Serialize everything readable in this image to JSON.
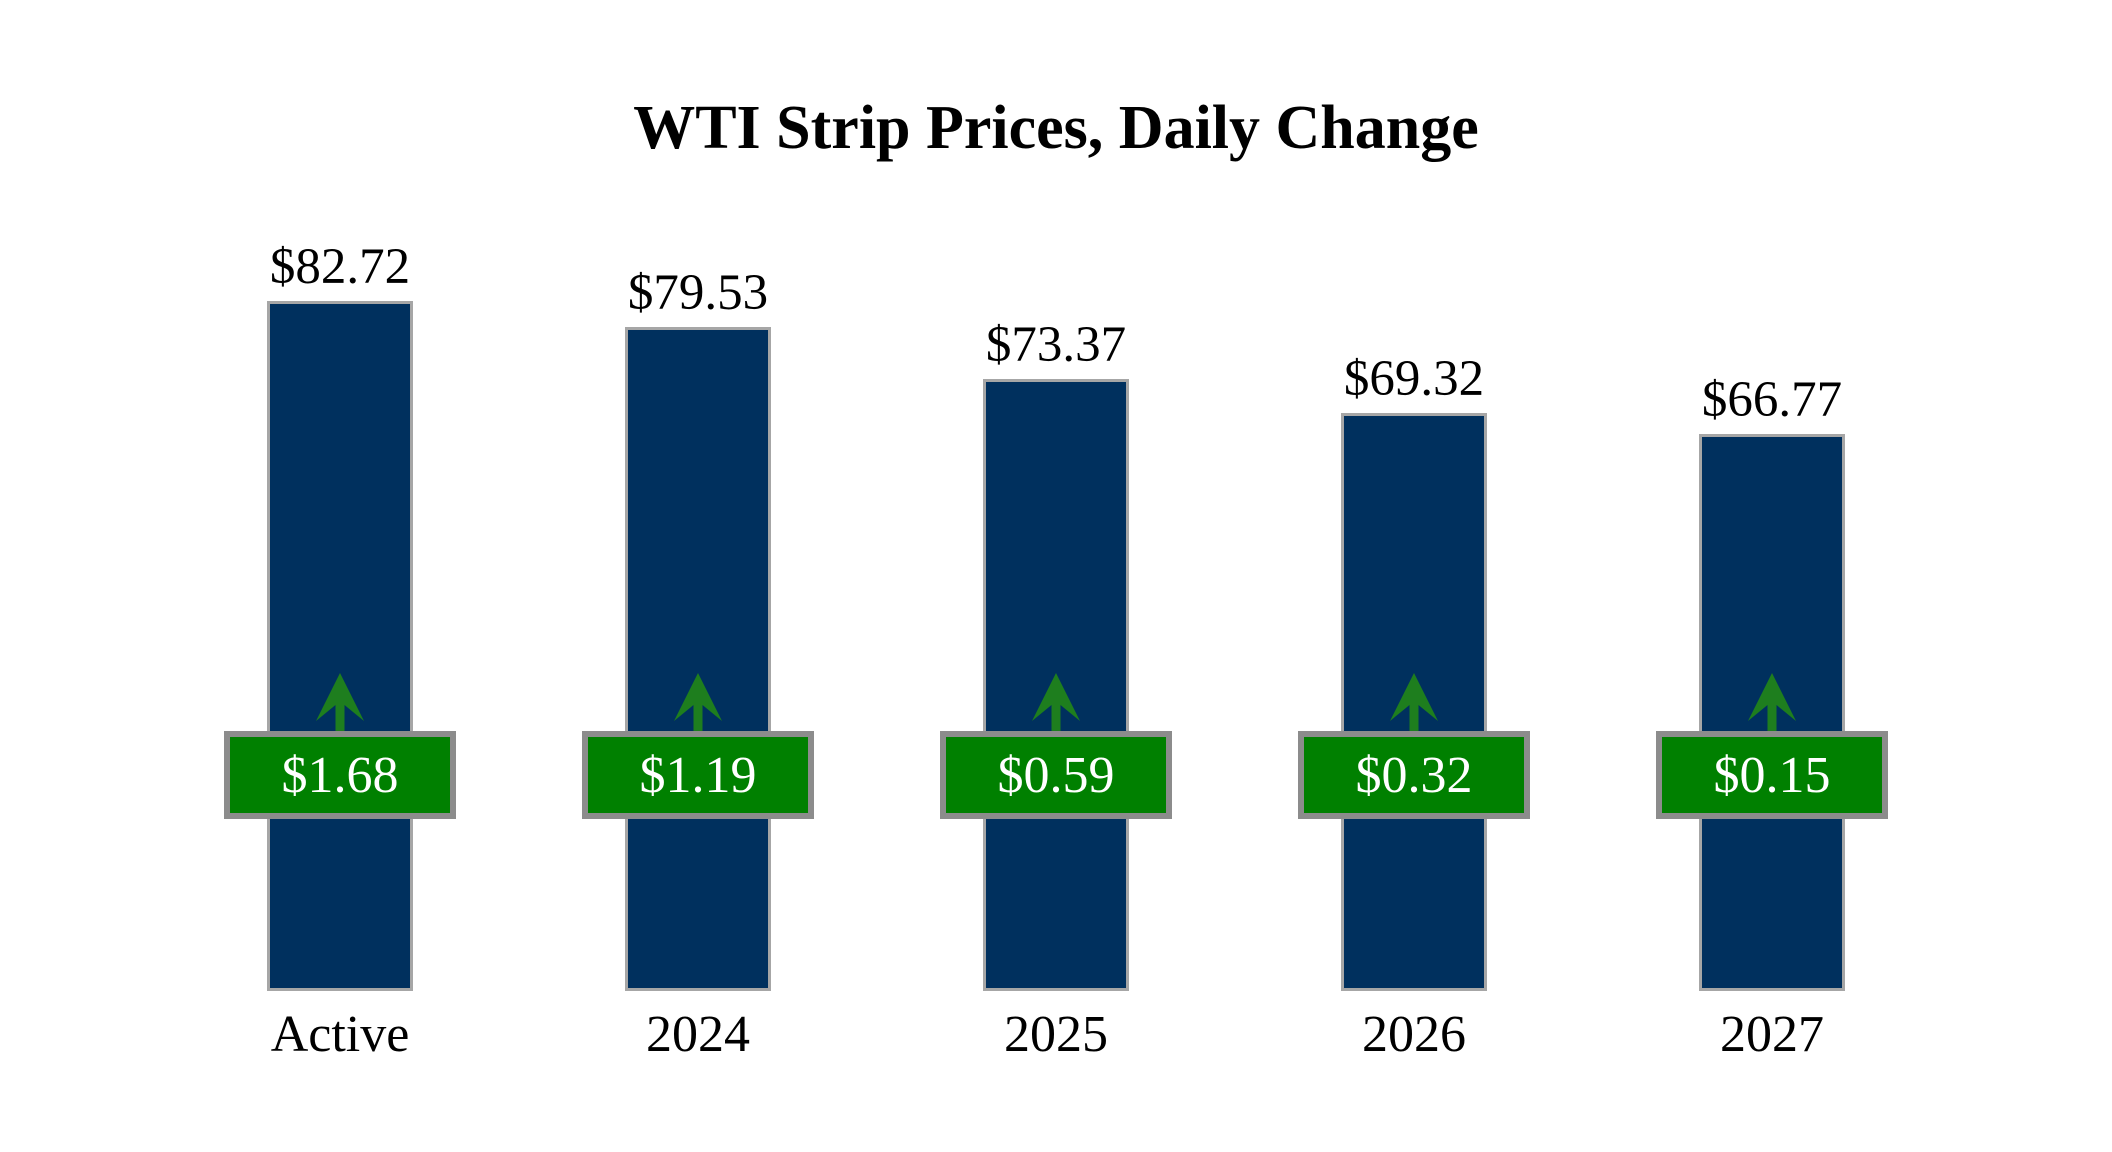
{
  "chart_data": {
    "type": "bar",
    "title": "WTI Strip Prices, Daily Change",
    "categories": [
      "Active",
      "2024",
      "2025",
      "2026",
      "2027"
    ],
    "values": [
      82.72,
      79.53,
      73.37,
      69.32,
      66.77
    ],
    "value_labels": [
      "$82.72",
      "$79.53",
      "$73.37",
      "$69.32",
      "$66.77"
    ],
    "daily_changes": [
      1.68,
      1.19,
      0.59,
      0.32,
      0.15
    ],
    "change_labels": [
      "$1.68",
      "$1.19",
      "$0.59",
      "$0.32",
      "$0.15"
    ],
    "change_direction": "up",
    "xlabel": "",
    "ylabel": "",
    "ylim": [
      0,
      90
    ],
    "baseline": 0,
    "grid": false,
    "legend": "none",
    "colors": {
      "background": "#FFFFFF",
      "bar_fill": "#00305E",
      "bar_border": "#A6A6A6",
      "badge_fill": "#008000",
      "badge_border": "#8C8C8C",
      "badge_text": "#FFFFFF",
      "arrow": "#1E7E1E",
      "label_text": "#000000"
    }
  }
}
